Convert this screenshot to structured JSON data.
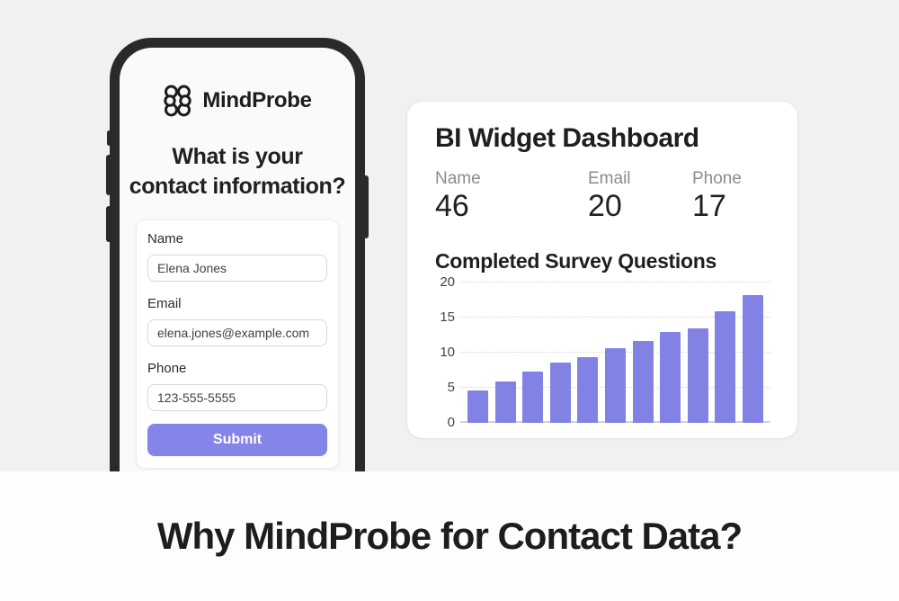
{
  "page": {
    "headline": "Why MindProbe for Contact Data?"
  },
  "phone": {
    "brand": "MindProbe",
    "logo_icon": "brain-icon",
    "question_line1": "What is your",
    "question_line2": "contact information?",
    "form": {
      "fields": [
        {
          "label": "Name",
          "value": "Elena Jones"
        },
        {
          "label": "Email",
          "value": "elena.jones@example.com"
        },
        {
          "label": "Phone",
          "value": "123-555-5555"
        }
      ],
      "submit_label": "Submit"
    }
  },
  "dashboard": {
    "title": "BI Widget Dashboard",
    "stats": [
      {
        "label": "Name",
        "value": "46"
      },
      {
        "label": "Email",
        "value": "20"
      },
      {
        "label": "Phone",
        "value": "17"
      }
    ],
    "chart_title": "Completed Survey Questions"
  },
  "chart_data": {
    "type": "bar",
    "title": "Completed Survey Questions",
    "values": [
      4.6,
      5.9,
      7.3,
      8.6,
      9.4,
      10.7,
      11.7,
      12.9,
      13.4,
      15.9,
      18.2
    ],
    "yticks": [
      0,
      5,
      10,
      15,
      20
    ],
    "ylim": [
      0,
      20
    ],
    "xlabel": "",
    "ylabel": "",
    "grid": "horizontal-dotted",
    "legend": "none",
    "bar_color": "#8182e4"
  },
  "colors": {
    "accent": "#8584e8",
    "bar": "#8182e4",
    "hero_bg": "#f1f1ef",
    "phone_frame": "#2a2a2b",
    "text_dark": "#1f1f21",
    "label_gray": "#8b8b92"
  }
}
